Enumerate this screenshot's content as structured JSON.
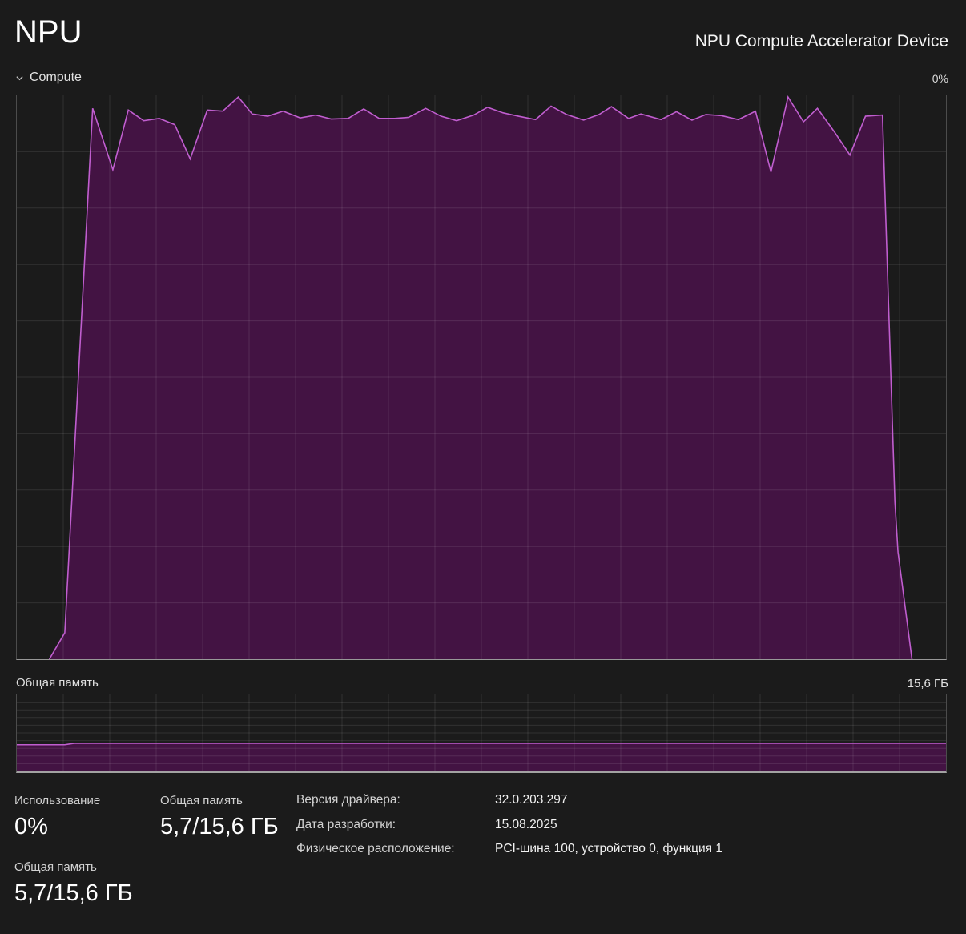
{
  "header": {
    "title": "NPU",
    "device_name": "NPU Compute Accelerator Device"
  },
  "compute_section": {
    "label": "Compute",
    "current_value": "0%"
  },
  "memory_section": {
    "label": "Общая память",
    "max_label": "15,6 ГБ"
  },
  "stats": {
    "usage": {
      "label": "Использование",
      "value": "0%"
    },
    "shared_memory_left": {
      "label": "Общая память",
      "value": "5,7/15,6 ГБ"
    },
    "shared_memory_mid": {
      "label": "Общая память",
      "value": "5,7/15,6 ГБ"
    },
    "details": [
      {
        "label": "Версия драйвера:",
        "value": "32.0.203.297"
      },
      {
        "label": "Дата разработки:",
        "value": "15.08.2025"
      },
      {
        "label": "Физическое расположение:",
        "value": "PCI-шина 100, устройство 0, функция 1"
      }
    ]
  },
  "colors": {
    "accent_line": "#c05ecf",
    "accent_fill": "#431343",
    "grid": "rgba(255,255,255,0.10)",
    "chart_background": "#1b1b1b",
    "border": "#4c4c4c",
    "axis_bottom": "#9a9a9a"
  },
  "chart_data": [
    {
      "type": "area",
      "title": "Compute utilization (%) over 60 seconds",
      "x_range_seconds": [
        0,
        60
      ],
      "y_range_percent": [
        0,
        100
      ],
      "current_value_percent": 0,
      "grid": {
        "cols": 20,
        "rows": 10,
        "on": true
      },
      "legend": "none",
      "points": [
        [
          2.1,
          0
        ],
        [
          3.1,
          4.7
        ],
        [
          4.9,
          97.7
        ],
        [
          6.2,
          86.8
        ],
        [
          7.2,
          97.4
        ],
        [
          8.2,
          95.5
        ],
        [
          9.2,
          95.9
        ],
        [
          10.2,
          94.8
        ],
        [
          11.2,
          88.7
        ],
        [
          12.3,
          97.4
        ],
        [
          13.3,
          97.2
        ],
        [
          14.3,
          99.7
        ],
        [
          15.2,
          96.7
        ],
        [
          16.2,
          96.3
        ],
        [
          17.2,
          97.2
        ],
        [
          18.3,
          96.0
        ],
        [
          19.3,
          96.5
        ],
        [
          20.3,
          95.8
        ],
        [
          21.4,
          95.9
        ],
        [
          22.4,
          97.6
        ],
        [
          23.4,
          95.9
        ],
        [
          24.4,
          95.9
        ],
        [
          25.3,
          96.1
        ],
        [
          26.4,
          97.7
        ],
        [
          27.4,
          96.3
        ],
        [
          28.4,
          95.5
        ],
        [
          29.5,
          96.5
        ],
        [
          30.4,
          97.9
        ],
        [
          31.4,
          96.9
        ],
        [
          32.4,
          96.3
        ],
        [
          33.5,
          95.7
        ],
        [
          34.5,
          98.1
        ],
        [
          35.5,
          96.6
        ],
        [
          36.6,
          95.6
        ],
        [
          37.6,
          96.6
        ],
        [
          38.4,
          98.0
        ],
        [
          39.5,
          95.9
        ],
        [
          40.3,
          96.7
        ],
        [
          41.6,
          95.7
        ],
        [
          42.6,
          97.1
        ],
        [
          43.6,
          95.6
        ],
        [
          44.5,
          96.6
        ],
        [
          45.5,
          96.4
        ],
        [
          46.6,
          95.7
        ],
        [
          47.7,
          97.2
        ],
        [
          48.7,
          86.4
        ],
        [
          49.8,
          99.7
        ],
        [
          50.8,
          95.3
        ],
        [
          51.7,
          97.7
        ],
        [
          52.8,
          93.5
        ],
        [
          53.8,
          89.4
        ],
        [
          54.8,
          96.3
        ],
        [
          55.9,
          96.5
        ],
        [
          56.7,
          28.0
        ],
        [
          56.9,
          19.0
        ],
        [
          57.8,
          0
        ]
      ]
    },
    {
      "type": "area",
      "title": "Общая память (ГБ) over 60 seconds",
      "x_range_seconds": [
        0,
        60
      ],
      "y_range_gb": [
        0,
        15.6
      ],
      "current_value_gb": 5.7,
      "total_gb": 15.6,
      "grid": {
        "cols": 20,
        "rows": 10,
        "on": true
      },
      "legend": "none",
      "points": [
        [
          0,
          5.4
        ],
        [
          3.1,
          5.4
        ],
        [
          3.7,
          5.7
        ],
        [
          60,
          5.7
        ]
      ]
    }
  ]
}
